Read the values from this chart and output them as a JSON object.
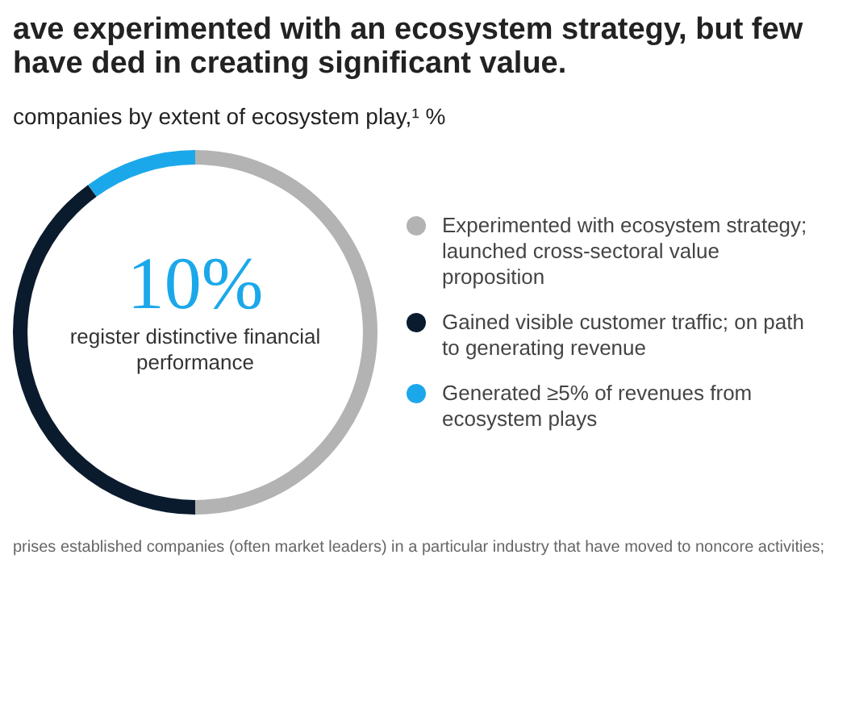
{
  "chart_data": {
    "type": "donut",
    "title": "ave experimented with an ecosystem strategy, but few have ded in creating significant value.",
    "subtitle": "companies by extent of ecosystem play,¹ %",
    "categories": [
      "Experimented with ecosystem strategy; launched cross-sectoral value proposition",
      "Gained visible customer traffic; on path to generating revenue",
      "Generated ≥5% of revenues from ecosystem plays"
    ],
    "values": [
      50,
      40,
      10
    ],
    "colors": [
      "#b3b3b3",
      "#0b1b2e",
      "#1ba8ea"
    ],
    "legend": "right",
    "annotations": [
      "10%",
      "register distinctive financial performance",
      "prises established companies (often market leaders) in a particular industry that have moved to noncore activities;"
    ]
  }
}
